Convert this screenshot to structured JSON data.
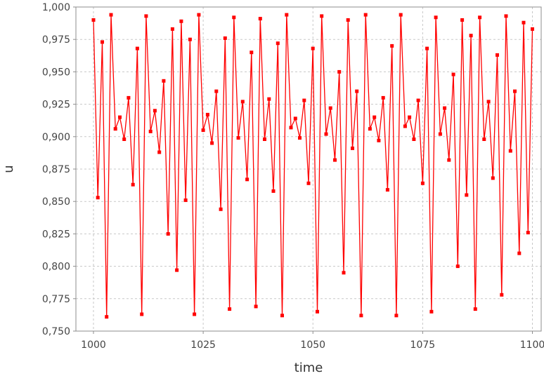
{
  "chart_data": {
    "type": "line",
    "title": "",
    "xlabel": "time",
    "ylabel": "u",
    "xlim": [
      996,
      1102
    ],
    "ylim": [
      0.75,
      1.0
    ],
    "x_ticks": [
      1000,
      1025,
      1050,
      1075,
      1100
    ],
    "x_tick_labels": [
      "1000",
      "1025",
      "1050",
      "1075",
      "1100"
    ],
    "y_ticks": [
      0.75,
      0.775,
      0.8,
      0.825,
      0.85,
      0.875,
      0.9,
      0.925,
      0.95,
      0.975,
      1.0
    ],
    "y_tick_labels": [
      "0,750",
      "0,775",
      "0,800",
      "0,825",
      "0,850",
      "0,875",
      "0,900",
      "0,925",
      "0,950",
      "0,975",
      "1,000"
    ],
    "grid": true,
    "series": [
      {
        "color": "#ff0000",
        "x": [
          1000,
          1001,
          1002,
          1003,
          1004,
          1005,
          1006,
          1007,
          1008,
          1009,
          1010,
          1011,
          1012,
          1013,
          1014,
          1015,
          1016,
          1017,
          1018,
          1019,
          1020,
          1021,
          1022,
          1023,
          1024,
          1025,
          1026,
          1027,
          1028,
          1029,
          1030,
          1031,
          1032,
          1033,
          1034,
          1035,
          1036,
          1037,
          1038,
          1039,
          1040,
          1041,
          1042,
          1043,
          1044,
          1045,
          1046,
          1047,
          1048,
          1049,
          1050,
          1051,
          1052,
          1053,
          1054,
          1055,
          1056,
          1057,
          1058,
          1059,
          1060,
          1061,
          1062,
          1063,
          1064,
          1065,
          1066,
          1067,
          1068,
          1069,
          1070,
          1071,
          1072,
          1073,
          1074,
          1075,
          1076,
          1077,
          1078,
          1079,
          1080,
          1081,
          1082,
          1083,
          1084,
          1085,
          1086,
          1087,
          1088,
          1089,
          1090,
          1091,
          1092,
          1093,
          1094,
          1095,
          1096,
          1097,
          1098,
          1099,
          1100
        ],
        "values": [
          0.99,
          0.853,
          0.973,
          0.761,
          0.994,
          0.906,
          0.915,
          0.898,
          0.93,
          0.863,
          0.968,
          0.763,
          0.993,
          0.904,
          0.92,
          0.888,
          0.943,
          0.825,
          0.983,
          0.797,
          0.989,
          0.851,
          0.975,
          0.763,
          0.994,
          0.905,
          0.917,
          0.895,
          0.935,
          0.844,
          0.976,
          0.767,
          0.992,
          0.899,
          0.927,
          0.867,
          0.965,
          0.769,
          0.991,
          0.898,
          0.929,
          0.858,
          0.972,
          0.762,
          0.994,
          0.907,
          0.914,
          0.899,
          0.928,
          0.864,
          0.968,
          0.765,
          0.993,
          0.902,
          0.922,
          0.882,
          0.95,
          0.795,
          0.99,
          0.891,
          0.935,
          0.762,
          0.994,
          0.906,
          0.915,
          0.897,
          0.93,
          0.859,
          0.97,
          0.762,
          0.994,
          0.908,
          0.915,
          0.898,
          0.928,
          0.864,
          0.968,
          0.765,
          0.992,
          0.902,
          0.922,
          0.882,
          0.948,
          0.8,
          0.99,
          0.855,
          0.978,
          0.767,
          0.992,
          0.898,
          0.927,
          0.868,
          0.963,
          0.778,
          0.993,
          0.889,
          0.935,
          0.81,
          0.988,
          0.826,
          0.983
        ]
      }
    ]
  }
}
